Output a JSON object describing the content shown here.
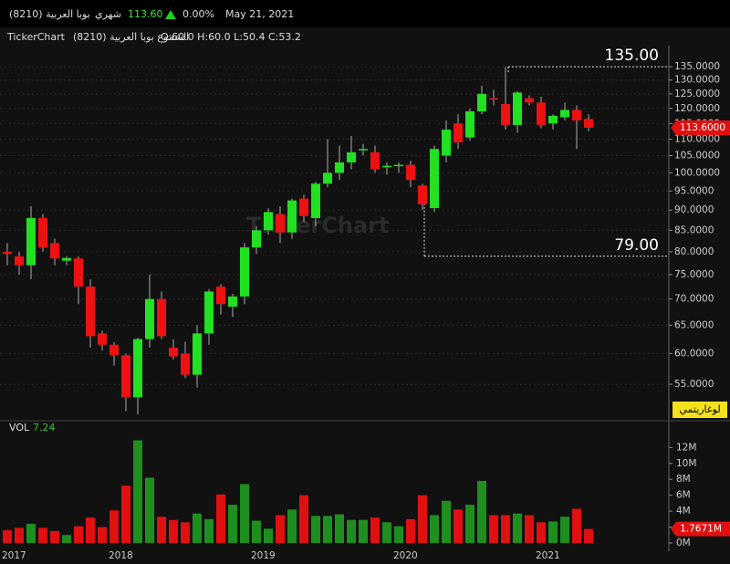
{
  "header": {
    "symbol": "بوبا العربية (8210)",
    "period": "شهري",
    "price": "113.60",
    "change": "0.00%",
    "date": "May 21, 2021"
  },
  "info": {
    "source": "TickerChart",
    "name": "الشموع بوبا العربية (8210)",
    "ohlc": "O:60.0 H:60.0 L:50.4 C:53.2"
  },
  "chart_data": [
    {
      "type": "candlestick",
      "watermark": "TickerChart",
      "log": true,
      "scale_label": "لوغاريتمي",
      "categories": [
        "2017",
        null,
        null,
        null,
        null,
        null,
        null,
        null,
        null,
        "2018",
        null,
        null,
        null,
        null,
        null,
        null,
        null,
        null,
        null,
        null,
        null,
        "2019",
        null,
        null,
        null,
        null,
        null,
        null,
        null,
        null,
        null,
        null,
        null,
        "2020",
        null,
        null,
        null,
        null,
        null,
        null,
        null,
        null,
        null,
        null,
        null,
        "2021",
        null,
        null,
        null,
        null
      ],
      "open": [
        80,
        79,
        77,
        88,
        82,
        78,
        78.5,
        72.5,
        63.5,
        61.5,
        59.7,
        53,
        62.5,
        70,
        61,
        60,
        56.5,
        63.5,
        72.5,
        68.5,
        70.5,
        81,
        85,
        89,
        84.5,
        93,
        88,
        97,
        100,
        103,
        106.8,
        106,
        101.8,
        102.1,
        102.3,
        96.5,
        90.5,
        105,
        115,
        110.5,
        119,
        123.5,
        121.5,
        114.5,
        123.5,
        122,
        115,
        117,
        119.5,
        116.5
      ],
      "high": [
        82,
        80,
        91,
        89,
        83,
        79,
        79,
        74,
        64,
        62,
        60,
        62.7,
        75,
        71.5,
        62.5,
        62,
        65,
        72,
        73,
        71,
        82,
        86,
        90.5,
        91,
        93,
        94,
        97.5,
        110,
        108,
        111,
        108.5,
        108,
        103,
        103,
        103.5,
        97,
        108,
        116,
        118,
        120,
        128,
        126.5,
        135,
        126,
        124.5,
        124,
        118,
        122,
        121,
        118
      ],
      "low": [
        77,
        75,
        74,
        80,
        77,
        77,
        69,
        61,
        60.5,
        58,
        51,
        50.5,
        61,
        62.5,
        59,
        56,
        54.5,
        61.5,
        67,
        66.5,
        69,
        79.5,
        84,
        82,
        83,
        87,
        86,
        96,
        98,
        101,
        105,
        100,
        99.5,
        100,
        96,
        90,
        89.5,
        103,
        107,
        109.5,
        118,
        121,
        113,
        112,
        121,
        113.5,
        113,
        116,
        107,
        112.5
      ],
      "close": [
        79.5,
        77,
        88,
        81,
        78.5,
        78.6,
        72.5,
        63,
        61.5,
        59.7,
        53,
        62.5,
        70,
        63,
        59.5,
        56.5,
        63.5,
        71.5,
        69,
        70.5,
        81,
        85,
        89.5,
        84.5,
        92.5,
        88.5,
        97,
        100,
        103,
        106,
        107,
        101,
        102,
        102.3,
        98,
        91.5,
        107,
        113,
        109,
        119,
        125,
        123,
        114.5,
        125.5,
        122,
        114.5,
        117.5,
        119.5,
        116,
        113.6
      ],
      "last_value_label": "113.6000",
      "colors": {
        "up": "#22e022",
        "down": "#ee1111"
      },
      "ylim": [
        50,
        143.3
      ],
      "yticks": [
        {
          "value": 55,
          "label": "55.0000"
        },
        {
          "value": 60,
          "label": "60.0000"
        },
        {
          "value": 65,
          "label": "65.0000"
        },
        {
          "value": 70,
          "label": "70.0000"
        },
        {
          "value": 75,
          "label": "75.0000"
        },
        {
          "value": 80,
          "label": "80.0000"
        },
        {
          "value": 85,
          "label": "85.0000"
        },
        {
          "value": 90,
          "label": "90.0000"
        },
        {
          "value": 95,
          "label": "95.0000"
        },
        {
          "value": 100,
          "label": "100.0000"
        },
        {
          "value": 105,
          "label": "105.0000"
        },
        {
          "value": 110,
          "label": "110.0000"
        },
        {
          "value": 115,
          "label": "115.0000"
        },
        {
          "value": 120,
          "label": "120.0000"
        },
        {
          "value": 125,
          "label": "125.0000"
        },
        {
          "value": 130,
          "label": "130.0000"
        },
        {
          "value": 135,
          "label": "135.0000"
        }
      ],
      "grid": true,
      "annotations": [
        {
          "value": 135,
          "label": "135.00"
        },
        {
          "value": 79,
          "label": "79.00"
        }
      ]
    },
    {
      "type": "bar",
      "title": "VOL",
      "title_value": "7.24",
      "values": [
        1.6,
        1.9,
        2.4,
        1.9,
        1.5,
        1.0,
        2.1,
        3.2,
        2.0,
        4.1,
        7.2,
        12.9,
        8.2,
        3.3,
        2.9,
        2.6,
        3.7,
        3.0,
        6.1,
        4.8,
        7.4,
        2.8,
        1.8,
        3.5,
        4.2,
        6.0,
        3.4,
        3.4,
        3.6,
        2.9,
        2.9,
        3.2,
        2.6,
        2.1,
        3.0,
        6.0,
        3.5,
        5.3,
        4.2,
        4.8,
        7.8,
        3.5,
        3.5,
        3.7,
        3.5,
        2.6,
        2.7,
        3.3,
        4.3,
        1.7671
      ],
      "last_value_label": "1.7671M",
      "colors": {
        "up": "#1e8f1e",
        "down": "#e01010"
      },
      "ylim": [
        0,
        14.9
      ],
      "yticks": [
        {
          "value": 0,
          "label": "0M"
        },
        {
          "value": 2,
          "label": "2M"
        },
        {
          "value": 4,
          "label": "4M"
        },
        {
          "value": 6,
          "label": "6M"
        },
        {
          "value": 8,
          "label": "8M"
        },
        {
          "value": 10,
          "label": "10M"
        },
        {
          "value": 12,
          "label": "12M"
        }
      ]
    }
  ]
}
